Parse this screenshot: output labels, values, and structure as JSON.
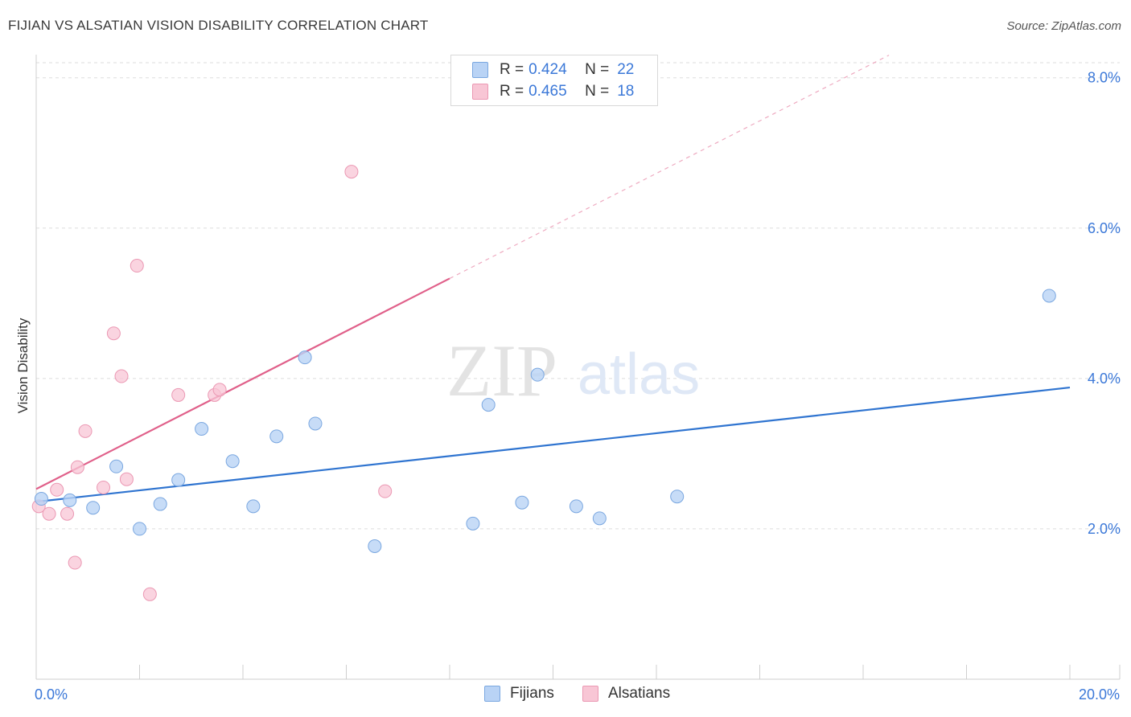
{
  "header": {
    "title": "FIJIAN VS ALSATIAN VISION DISABILITY CORRELATION CHART",
    "source": "Source: ZipAtlas.com"
  },
  "watermark": {
    "zip": "ZIP",
    "atlas": "atlas"
  },
  "legend": {
    "fijians": {
      "r_label": "R =",
      "r_value": "0.424",
      "n_label": "N =",
      "n_value": "22"
    },
    "alsatians": {
      "r_label": "R =",
      "r_value": "0.465",
      "n_label": "N =",
      "n_value": "18"
    }
  },
  "bottom_legend": {
    "fijians": "Fijians",
    "alsatians": "Alsatians"
  },
  "colors": {
    "fijians_fill": "#b9d3f5",
    "fijians_stroke": "#7aa7e0",
    "fijians_line": "#2f74d0",
    "alsatians_fill": "#f8c6d5",
    "alsatians_stroke": "#eb98b3",
    "alsatians_line": "#e0608a",
    "tick_label": "#3b78d8",
    "grid": "#dddddd"
  },
  "chart_data": {
    "type": "scatter",
    "title": "FIJIAN VS ALSATIAN VISION DISABILITY CORRELATION CHART",
    "xlabel": "",
    "ylabel": "Vision Disability",
    "xlim": [
      0,
      20
    ],
    "ylim": [
      0,
      8.2
    ],
    "x_tick_labels": [
      {
        "value": 0,
        "label": "0.0%"
      },
      {
        "value": 20,
        "label": "20.0%"
      }
    ],
    "y_tick_labels": [
      {
        "value": 2,
        "label": "2.0%"
      },
      {
        "value": 4,
        "label": "4.0%"
      },
      {
        "value": 6,
        "label": "6.0%"
      },
      {
        "value": 8,
        "label": "8.0%"
      }
    ],
    "series": [
      {
        "name": "Fijians",
        "points": [
          [
            0.1,
            2.4
          ],
          [
            0.65,
            2.38
          ],
          [
            1.1,
            2.28
          ],
          [
            1.55,
            2.83
          ],
          [
            2.0,
            2.0
          ],
          [
            2.4,
            2.33
          ],
          [
            2.75,
            2.65
          ],
          [
            3.2,
            3.33
          ],
          [
            3.8,
            2.9
          ],
          [
            4.2,
            2.3
          ],
          [
            4.65,
            3.23
          ],
          [
            5.2,
            4.28
          ],
          [
            5.4,
            3.4
          ],
          [
            6.55,
            1.77
          ],
          [
            8.45,
            2.07
          ],
          [
            8.75,
            3.65
          ],
          [
            9.4,
            2.35
          ],
          [
            9.7,
            4.05
          ],
          [
            10.45,
            2.3
          ],
          [
            10.9,
            2.14
          ],
          [
            12.4,
            2.43
          ],
          [
            19.6,
            5.1
          ]
        ],
        "trend": {
          "x0": 0,
          "y0": 2.36,
          "x1": 20,
          "y1": 3.88
        }
      },
      {
        "name": "Alsatians",
        "points": [
          [
            0.05,
            2.3
          ],
          [
            0.25,
            2.2
          ],
          [
            0.4,
            2.52
          ],
          [
            0.6,
            2.2
          ],
          [
            0.75,
            1.55
          ],
          [
            0.8,
            2.82
          ],
          [
            0.95,
            3.3
          ],
          [
            1.3,
            2.55
          ],
          [
            1.5,
            4.6
          ],
          [
            1.65,
            4.03
          ],
          [
            1.75,
            2.66
          ],
          [
            1.95,
            5.5
          ],
          [
            2.2,
            1.13
          ],
          [
            2.75,
            3.78
          ],
          [
            3.45,
            3.78
          ],
          [
            3.55,
            3.85
          ],
          [
            6.1,
            6.75
          ],
          [
            6.75,
            2.5
          ]
        ],
        "trend": {
          "x0": 0,
          "y0": 2.53,
          "x1": 8,
          "y1": 5.33
        },
        "trend_dashed": {
          "x0": 8,
          "y0": 5.33,
          "x1": 16.5,
          "y1": 8.3
        }
      }
    ],
    "grid": true,
    "legend_position": "top-center"
  }
}
